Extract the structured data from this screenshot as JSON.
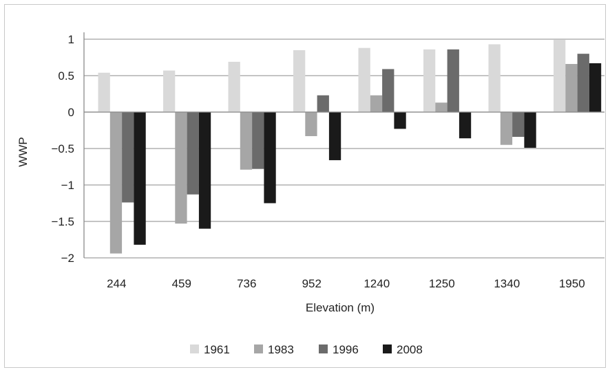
{
  "chart_data": {
    "type": "bar",
    "title": "",
    "xlabel": "Elevation (m)",
    "ylabel": "WWP",
    "ylim": [
      -2,
      1
    ],
    "yticks": [
      1,
      0.5,
      0,
      -0.5,
      -1,
      -1.5,
      -2
    ],
    "ytick_labels": [
      "1",
      "0.5",
      "0",
      "−0.5",
      "−1",
      "−1.5",
      "−2"
    ],
    "grid": true,
    "legend_position": "bottom",
    "categories": [
      "244",
      "459",
      "736",
      "952",
      "1240",
      "1250",
      "1340",
      "1950"
    ],
    "series": [
      {
        "name": "1961",
        "color": "#d9d9d9",
        "values": [
          0.54,
          0.57,
          0.69,
          0.85,
          0.88,
          0.86,
          0.93,
          0.99
        ]
      },
      {
        "name": "1983",
        "color": "#a6a6a6",
        "values": [
          -1.94,
          -1.53,
          -0.79,
          -0.33,
          0.23,
          0.13,
          -0.45,
          0.66
        ]
      },
      {
        "name": "1996",
        "color": "#6b6b6b",
        "values": [
          -1.24,
          -1.13,
          -0.78,
          0.23,
          0.59,
          0.86,
          -0.34,
          0.8
        ]
      },
      {
        "name": "2008",
        "color": "#1a1a1a",
        "values": [
          -1.82,
          -1.6,
          -1.25,
          -0.66,
          -0.23,
          -0.36,
          -0.49,
          0.67
        ]
      }
    ]
  }
}
